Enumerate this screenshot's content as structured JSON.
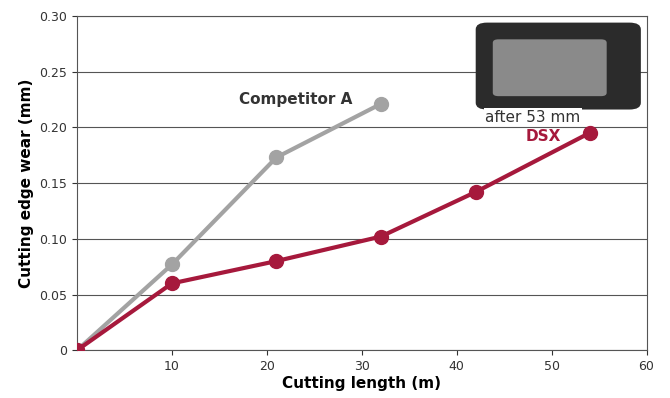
{
  "chart_data": {
    "type": "line",
    "x_label": "Cutting length (m)",
    "y_label": "Cutting edge wear (mm)",
    "annotation": "after 53 mm",
    "series": [
      {
        "name": "Competitor A",
        "color": "#a3a3a3",
        "marker": "o",
        "x": [
          0,
          10,
          21,
          32
        ],
        "values": [
          0.0,
          0.077,
          0.173,
          0.221
        ]
      },
      {
        "name": "DSX",
        "color": "#a6193c",
        "marker": "o",
        "x": [
          0,
          10,
          21,
          32,
          42,
          54
        ],
        "values": [
          0.0,
          0.06,
          0.08,
          0.102,
          0.142,
          0.195
        ]
      }
    ],
    "xlim": [
      0,
      60
    ],
    "xticks": [
      10,
      20,
      30,
      40,
      50,
      60
    ],
    "ylim": [
      0,
      0.3
    ],
    "yticks": [
      0,
      0.05,
      {
        "value": 0.1,
        "label": "0.10"
      },
      0.15,
      {
        "value": 0.2,
        "label": "0.20"
      },
      0.25,
      {
        "value": 0.3,
        "label": "0.30"
      }
    ],
    "grid": true
  }
}
